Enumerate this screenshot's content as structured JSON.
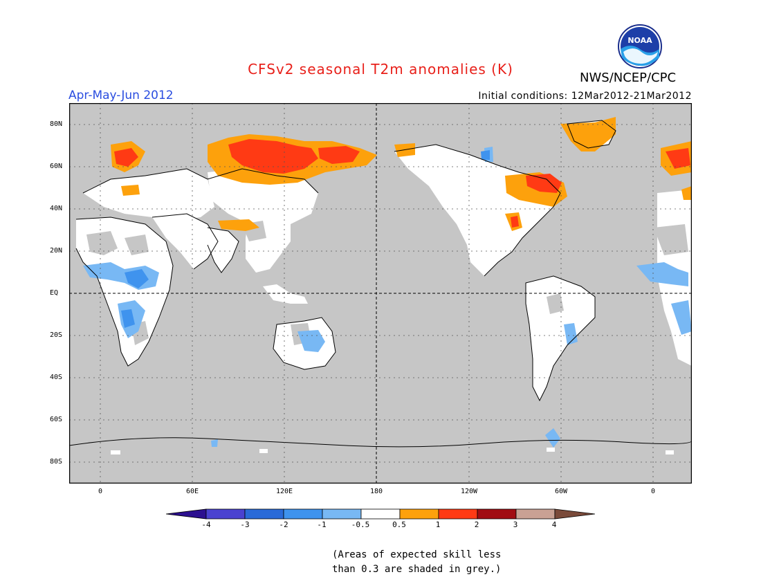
{
  "header": {
    "title": "CFSv2 seasonal T2m anomalies (K)",
    "credit": "NWS/NCEP/CPC",
    "period": "Apr-May-Jun 2012",
    "initial_conditions": "Initial conditions: 12Mar2012-21Mar2012",
    "logo_text": "NOAA"
  },
  "colors": {
    "title": "#e8201a",
    "period": "#2a4de0",
    "no_skill_grey": "#c6c6c6",
    "neutral": "#ffffff",
    "land_outline": "#000000"
  },
  "axes": {
    "lat_labels": [
      "80N",
      "60N",
      "40N",
      "20N",
      "EQ",
      "20S",
      "40S",
      "60S",
      "80S"
    ],
    "lon_labels": [
      "0",
      "60E",
      "120E",
      "180",
      "120W",
      "60W",
      "0"
    ]
  },
  "legend": {
    "tick_labels": [
      "-4",
      "-3",
      "-2",
      "-1",
      "-0.5",
      "0.5",
      "1",
      "2",
      "3",
      "4"
    ],
    "bins": [
      {
        "range": "< -4",
        "color": "#2c1090"
      },
      {
        "range": "-4 to -3",
        "color": "#4a42d0"
      },
      {
        "range": "-3 to -2",
        "color": "#2a6ad8"
      },
      {
        "range": "-2 to -1",
        "color": "#3f93ee"
      },
      {
        "range": "-1 to -0.5",
        "color": "#78b8f4"
      },
      {
        "range": "-0.5 to 0.5",
        "color": "#ffffff"
      },
      {
        "range": "0.5 to 1",
        "color": "#fda10c"
      },
      {
        "range": "1 to 2",
        "color": "#ff3a14"
      },
      {
        "range": "2 to 3",
        "color": "#a10c12"
      },
      {
        "range": "3 to 4",
        "color": "#c9a194"
      },
      {
        "range": "> 4",
        "color": "#7a4a3a"
      }
    ]
  },
  "note": {
    "line1": "(Areas of expected skill less",
    "line2": "than 0.3 are shaded in grey.)"
  }
}
